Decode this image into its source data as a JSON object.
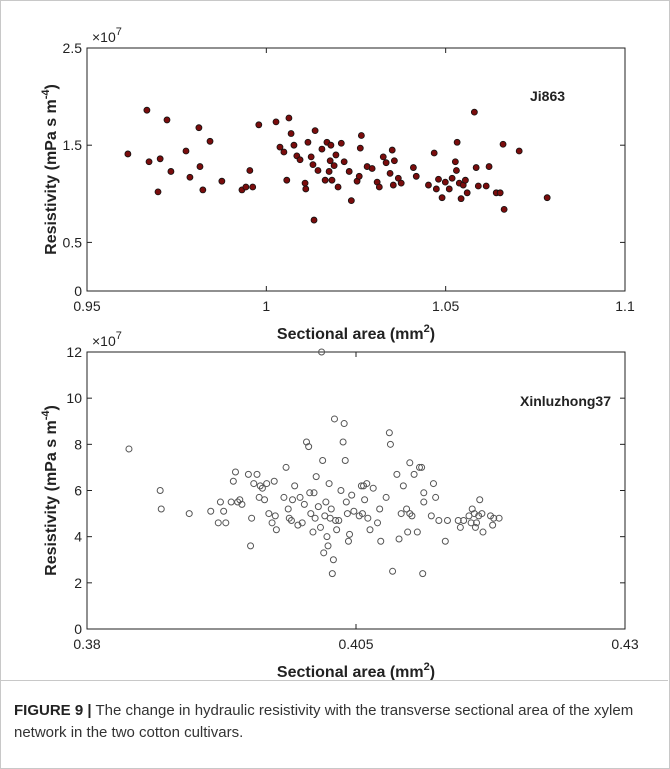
{
  "chart_data": [
    {
      "type": "scatter",
      "multiplier": {
        "base": "×10",
        "exp": "7"
      },
      "xlabel": {
        "text": "Sectional area (mm",
        "sup": "2",
        "tail": ")"
      },
      "ylabel": {
        "text": "Resistivity (mPa s m",
        "sup": "-4",
        "tail": ")"
      },
      "annotation": "Ji863",
      "xlim": [
        0.95,
        1.1
      ],
      "xticks": [
        0.95,
        1,
        1.05,
        1.1
      ],
      "ylim": [
        0,
        2.5
      ],
      "yticks": [
        0,
        0.5,
        1.5,
        2.5
      ],
      "color": "#7a0c0c",
      "edgecolor": "#111111",
      "filled": true,
      "x": [
        0.9614,
        0.9667,
        0.9673,
        0.9704,
        0.9698,
        0.9723,
        0.9734,
        0.9776,
        0.9787,
        0.9812,
        0.9815,
        0.9823,
        0.9843,
        0.9876,
        0.9932,
        0.9943,
        0.9954,
        0.9962,
        0.9979,
        1.0027,
        1.0038,
        1.0049,
        1.0057,
        1.0063,
        1.0069,
        1.0077,
        1.0085,
        1.0094,
        1.0108,
        1.011,
        1.0116,
        1.0125,
        1.013,
        1.0136,
        1.0133,
        1.0144,
        1.0155,
        1.0164,
        1.0169,
        1.0175,
        1.0178,
        1.018,
        1.0183,
        1.0189,
        1.0194,
        1.02,
        1.0209,
        1.0217,
        1.0231,
        1.0237,
        1.0253,
        1.0262,
        1.0259,
        1.0265,
        1.0281,
        1.0295,
        1.0309,
        1.0315,
        1.0326,
        1.0334,
        1.0345,
        1.0351,
        1.0354,
        1.0357,
        1.0368,
        1.0376,
        1.041,
        1.0418,
        1.0452,
        1.0468,
        1.0474,
        1.048,
        1.049,
        1.0499,
        1.051,
        1.0518,
        1.0527,
        1.0532,
        1.053,
        1.0538,
        1.0543,
        1.0549,
        1.0555,
        1.056,
        1.058,
        1.0585,
        1.0591,
        1.0613,
        1.0621,
        1.0641,
        1.0652,
        1.066,
        1.0663,
        1.0705,
        1.0783
      ],
      "values": [
        1.41,
        1.86,
        1.33,
        1.36,
        1.02,
        1.76,
        1.23,
        1.44,
        1.17,
        1.68,
        1.28,
        1.04,
        1.54,
        1.13,
        1.04,
        1.07,
        1.24,
        1.07,
        1.71,
        1.74,
        1.48,
        1.43,
        1.14,
        1.78,
        1.62,
        1.5,
        1.39,
        1.35,
        1.11,
        1.05,
        1.53,
        1.38,
        1.3,
        1.65,
        0.73,
        1.24,
        1.46,
        1.14,
        1.53,
        1.23,
        1.34,
        1.5,
        1.14,
        1.29,
        1.4,
        1.07,
        1.52,
        1.33,
        1.23,
        0.93,
        1.13,
        1.47,
        1.18,
        1.6,
        1.28,
        1.26,
        1.12,
        1.07,
        1.38,
        1.32,
        1.21,
        1.45,
        1.09,
        1.34,
        1.16,
        1.11,
        1.27,
        1.18,
        1.09,
        1.42,
        1.05,
        1.15,
        0.96,
        1.12,
        1.05,
        1.16,
        1.33,
        1.53,
        1.24,
        1.11,
        0.95,
        1.09,
        1.14,
        1.01,
        1.84,
        1.27,
        1.08,
        1.08,
        1.28,
        1.01,
        1.01,
        1.51,
        0.84,
        1.44,
        0.96
      ]
    },
    {
      "type": "scatter",
      "multiplier": {
        "base": "×10",
        "exp": "7"
      },
      "xlabel": {
        "text": "Sectional area (mm",
        "sup": "2",
        "tail": ")"
      },
      "ylabel": {
        "text": "Resistivity (mPa s m",
        "sup": "-4",
        "tail": ")"
      },
      "annotation": "Xinluzhong37",
      "xlim": [
        0.38,
        0.43
      ],
      "xticks": [
        0.38,
        0.405,
        0.43
      ],
      "ylim": [
        0,
        12
      ],
      "yticks": [
        0,
        2,
        4,
        6,
        8,
        10,
        12
      ],
      "color": "#555555",
      "edgecolor": "#555555",
      "filled": false,
      "x": [
        0.3839,
        0.3868,
        0.3869,
        0.3895,
        0.3915,
        0.3922,
        0.3924,
        0.3927,
        0.3929,
        0.3934,
        0.3936,
        0.3938,
        0.394,
        0.3942,
        0.3944,
        0.395,
        0.3952,
        0.3953,
        0.3955,
        0.3958,
        0.396,
        0.3961,
        0.3963,
        0.3965,
        0.3967,
        0.3969,
        0.3972,
        0.3974,
        0.3975,
        0.3976,
        0.3983,
        0.3985,
        0.3987,
        0.3988,
        0.399,
        0.3991,
        0.3993,
        0.3996,
        0.3998,
        0.4,
        0.4002,
        0.4004,
        0.4006,
        0.4007,
        0.4008,
        0.401,
        0.4011,
        0.4012,
        0.4013,
        0.4015,
        0.4017,
        0.4018,
        0.4019,
        0.402,
        0.4021,
        0.4022,
        0.4023,
        0.4024,
        0.4025,
        0.4026,
        0.4027,
        0.4028,
        0.4029,
        0.403,
        0.4031,
        0.4032,
        0.4034,
        0.4036,
        0.4038,
        0.4039,
        0.404,
        0.4041,
        0.4042,
        0.4043,
        0.4044,
        0.4046,
        0.4048,
        0.4053,
        0.4055,
        0.4056,
        0.4057,
        0.4058,
        0.406,
        0.4061,
        0.4063,
        0.4066,
        0.407,
        0.4072,
        0.4073,
        0.4078,
        0.4081,
        0.4082,
        0.4084,
        0.4088,
        0.409,
        0.4092,
        0.4094,
        0.4097,
        0.4098,
        0.41,
        0.41,
        0.4102,
        0.4104,
        0.4107,
        0.4109,
        0.4111,
        0.4112,
        0.4113,
        0.4113,
        0.412,
        0.4122,
        0.4124,
        0.4127,
        0.4133,
        0.4135,
        0.4145,
        0.4147,
        0.415,
        0.4155,
        0.4157,
        0.4158,
        0.416,
        0.4161,
        0.4162,
        0.4164,
        0.4165,
        0.4167,
        0.4168,
        0.4175,
        0.4177,
        0.4178,
        0.4183
      ],
      "values": [
        7.8,
        6.0,
        5.2,
        5.0,
        5.1,
        4.6,
        5.5,
        5.1,
        4.6,
        5.5,
        6.4,
        6.8,
        5.5,
        5.6,
        5.4,
        6.7,
        3.6,
        4.8,
        6.3,
        6.7,
        5.7,
        6.2,
        6.1,
        5.6,
        6.3,
        5.0,
        4.6,
        6.4,
        4.9,
        4.3,
        5.7,
        7.0,
        5.2,
        4.8,
        4.7,
        5.6,
        6.2,
        4.5,
        5.7,
        4.6,
        5.4,
        8.1,
        7.9,
        5.9,
        5.0,
        4.2,
        5.9,
        4.8,
        6.6,
        5.3,
        4.4,
        12.0,
        7.3,
        3.3,
        4.9,
        5.5,
        4.0,
        3.6,
        6.3,
        4.8,
        5.2,
        2.4,
        3.0,
        9.1,
        4.7,
        4.3,
        4.7,
        6.0,
        8.1,
        8.9,
        7.3,
        5.5,
        5.0,
        3.8,
        4.1,
        5.8,
        5.1,
        4.9,
        6.2,
        5.0,
        6.2,
        5.6,
        6.3,
        4.8,
        4.3,
        6.1,
        4.6,
        5.2,
        3.8,
        5.7,
        8.5,
        8.0,
        2.5,
        6.7,
        3.9,
        5.0,
        6.2,
        5.2,
        4.2,
        5.0,
        7.2,
        4.9,
        6.7,
        4.2,
        7.0,
        7.0,
        2.4,
        5.5,
        5.9,
        4.9,
        6.3,
        5.7,
        4.7,
        3.8,
        4.7,
        4.7,
        4.4,
        4.7,
        4.9,
        4.6,
        5.2,
        5.0,
        4.4,
        4.6,
        4.9,
        5.6,
        5.0,
        4.2,
        4.9,
        4.5,
        4.8,
        4.8
      ]
    }
  ],
  "caption": {
    "label": "FIGURE 9 |",
    "text": "The change in hydraulic resistivity with the transverse sectional area of the xylem network in the two cotton cultivars."
  }
}
